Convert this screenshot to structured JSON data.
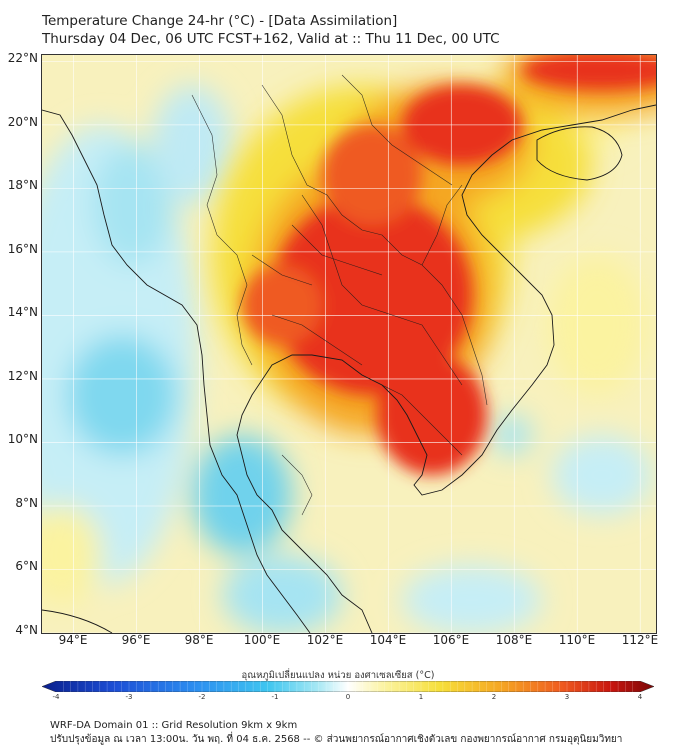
{
  "title": {
    "line1": "Temperature Change 24-hr (°C) - [Data Assimilation]",
    "line2": "Thursday 04 Dec, 06 UTC FCST+162, Valid at :: Thu 11 Dec, 00 UTC"
  },
  "map": {
    "lat_labels": [
      "22°N",
      "20°N",
      "18°N",
      "16°N",
      "14°N",
      "12°N",
      "10°N",
      "8°N",
      "6°N",
      "4°N"
    ],
    "lon_labels": [
      "94°E",
      "96°E",
      "98°E",
      "100°E",
      "102°E",
      "104°E",
      "106°E",
      "108°E",
      "110°E",
      "112°E"
    ],
    "extent": {
      "lon_min": 93,
      "lon_max": 112.5,
      "lat_min": 4,
      "lat_max": 22.2
    },
    "colors": {
      "ocean_cool": "#7fd8ef",
      "light_cyan": "#c8eef6",
      "pale_yellow": "#fbf7c4",
      "yellow": "#f6e34a",
      "orange": "#f4a22b",
      "red": "#e8311a",
      "coast": "#1a1a1a"
    }
  },
  "colorbar": {
    "title": "อุณหภูมิเปลี่ยนแปลง หน่วย องศาเซลเซียส (°C)",
    "ticks": [
      "-4",
      "-3",
      "-2",
      "-1",
      "0",
      "1",
      "2",
      "3",
      "4"
    ],
    "colors": [
      "#0a1f8c",
      "#1d4fd6",
      "#2c8ef0",
      "#3fc6f0",
      "#a6e8f4",
      "#ffffff",
      "#fbf3a0",
      "#f6df3a",
      "#f5a623",
      "#ef5a20",
      "#c8150e",
      "#7a0808"
    ]
  },
  "footer": {
    "line1": "WRF-DA Domain 01 :: Grid Resolution 9km x 9km",
    "line2": "ปรับปรุงข้อมูล ณ เวลา 13:00น. วัน พฤ. ที่ 04 ธ.ค. 2568 -- © ส่วนพยากรณ์อากาศเชิงตัวเลข กองพยากรณ์อากาศ กรมอุตุนิยมวิทยา"
  }
}
